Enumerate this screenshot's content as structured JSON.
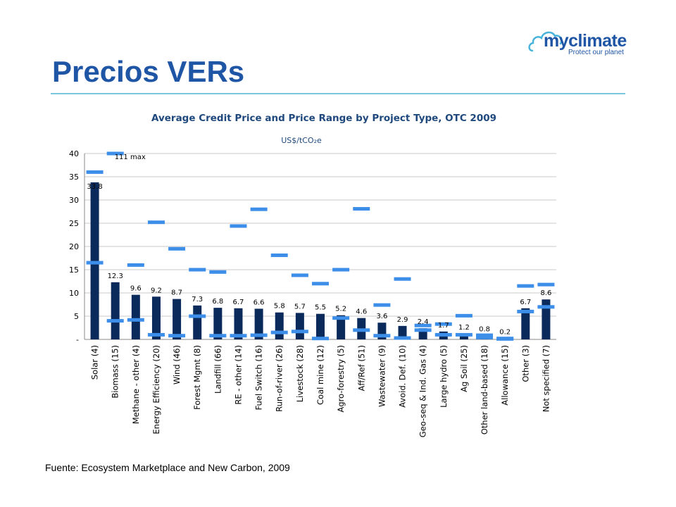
{
  "slide": {
    "title": "Precios VERs",
    "source": "Fuente: Ecosystem Marketplace and New Carbon, 2009",
    "logo": {
      "wordmark": "myclimate",
      "tagline": "Protect our planet",
      "icon": "cloud-icon"
    }
  },
  "colors": {
    "title": "#1f55a5",
    "rule": "#7cc6dd",
    "bar": "#0b2a5c",
    "range": "#3d8ee8",
    "chart_title": "#1f497d",
    "logo": "#1f55a5",
    "logo_cloud": "#48b4dc"
  },
  "chart_data": {
    "type": "bar",
    "title": "Average Credit Price and Price Range by Project Type, OTC 2009",
    "subtitle": "US$/tCO₂e",
    "xlabel": "",
    "ylabel": "",
    "ylim": [
      0,
      40
    ],
    "yticks": [
      {
        "value": 0,
        "label": "-"
      },
      {
        "value": 5,
        "label": "5"
      },
      {
        "value": 10,
        "label": "10"
      },
      {
        "value": 15,
        "label": "15"
      },
      {
        "value": 20,
        "label": "20"
      },
      {
        "value": 25,
        "label": "25"
      },
      {
        "value": 30,
        "label": "30"
      },
      {
        "value": 35,
        "label": "35"
      },
      {
        "value": 40,
        "label": "40"
      }
    ],
    "grid": true,
    "annotation": {
      "text": "111 max",
      "category_index": 1
    },
    "categories": [
      "Solar (4)",
      "Biomass (15)",
      "Methane - other (4)",
      "Energy Efficiency (20)",
      "Wind (46)",
      "Forest Mgmt (8)",
      "Landfill (66)",
      "RE - other (14)",
      "Fuel Switch (16)",
      "Run-of-river (26)",
      "Livestock (28)",
      "Coal mine (12)",
      "Agro-forestry (5)",
      "Aff/Ref (51)",
      "Wastewater (9)",
      "Avoid. Def. (10)",
      "Geo-seq & Ind. Gas (4)",
      "Large hydro (5)",
      "Ag Soil (25)",
      "Other land-based (18)",
      "Allowance (15)",
      "Other (3)",
      "Not specified (7)"
    ],
    "values": [
      33.8,
      12.3,
      9.6,
      9.2,
      8.7,
      7.3,
      6.8,
      6.7,
      6.6,
      5.8,
      5.7,
      5.5,
      5.2,
      4.6,
      3.6,
      2.9,
      2.4,
      1.7,
      1.2,
      0.8,
      0.2,
      6.7,
      8.6
    ],
    "value_labels": [
      "33.8",
      "12.3",
      "9.6",
      "9.2",
      "8.7",
      "7.3",
      "6.8",
      "6.7",
      "6.6",
      "5.8",
      "5.7",
      "5.5",
      "5.2",
      "4.6",
      "3.6",
      "2.9",
      "2.4",
      "1.7",
      "1.2",
      "0.8",
      "0.2",
      "6.7",
      "8.6"
    ],
    "range_min": [
      16.5,
      4.0,
      4.2,
      1.0,
      0.8,
      5.0,
      0.8,
      0.8,
      0.9,
      1.5,
      1.7,
      0.2,
      4.6,
      2.0,
      0.8,
      0.3,
      2.0,
      1.0,
      1.0,
      0.4,
      0.1,
      6.0,
      7.0
    ],
    "range_max": [
      36.0,
      40.0,
      16.0,
      25.2,
      19.5,
      15.0,
      14.5,
      24.4,
      28.0,
      18.1,
      13.8,
      12.0,
      15.0,
      28.1,
      7.4,
      13.0,
      3.0,
      3.3,
      5.1,
      0.9,
      0.2,
      11.5,
      11.8
    ]
  }
}
